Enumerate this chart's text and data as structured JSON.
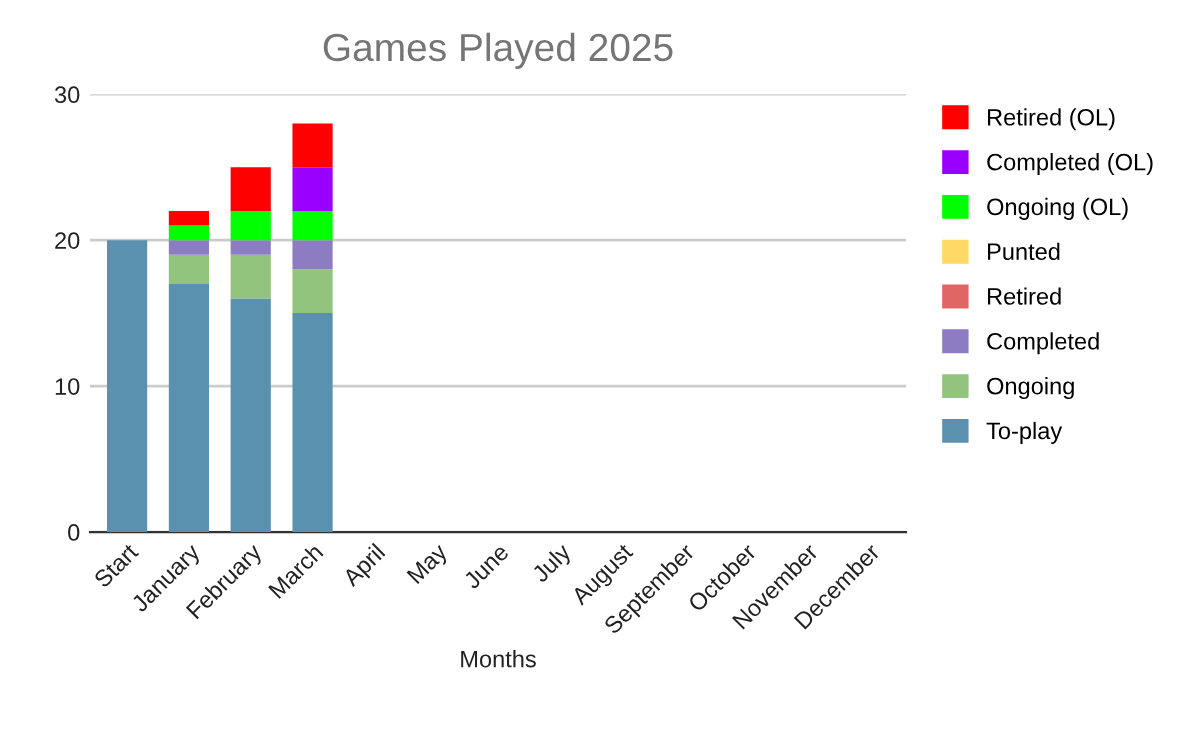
{
  "chart_data": {
    "type": "bar",
    "title": "Games Played 2025",
    "xlabel": "Months",
    "stacked": true,
    "categories": [
      "Start",
      "January",
      "February",
      "March",
      "April",
      "May",
      "June",
      "July",
      "August",
      "September",
      "October",
      "November",
      "December"
    ],
    "series": [
      {
        "name": "To-play",
        "color": "#5a91ae",
        "values": [
          20,
          17,
          16,
          15,
          null,
          null,
          null,
          null,
          null,
          null,
          null,
          null,
          null
        ]
      },
      {
        "name": "Ongoing",
        "color": "#93c47d",
        "values": [
          0,
          2,
          3,
          3,
          null,
          null,
          null,
          null,
          null,
          null,
          null,
          null,
          null
        ]
      },
      {
        "name": "Completed",
        "color": "#8e7cc3",
        "values": [
          0,
          1,
          1,
          2,
          null,
          null,
          null,
          null,
          null,
          null,
          null,
          null,
          null
        ]
      },
      {
        "name": "Retired",
        "color": "#e06666",
        "values": [
          0,
          0,
          0,
          0,
          null,
          null,
          null,
          null,
          null,
          null,
          null,
          null,
          null
        ]
      },
      {
        "name": "Punted",
        "color": "#ffd966",
        "values": [
          0,
          0,
          0,
          0,
          null,
          null,
          null,
          null,
          null,
          null,
          null,
          null,
          null
        ]
      },
      {
        "name": "Ongoing (OL)",
        "color": "#00ff00",
        "values": [
          0,
          1,
          2,
          2,
          null,
          null,
          null,
          null,
          null,
          null,
          null,
          null,
          null
        ]
      },
      {
        "name": "Completed (OL)",
        "color": "#9900ff",
        "values": [
          0,
          0,
          0,
          3,
          null,
          null,
          null,
          null,
          null,
          null,
          null,
          null,
          null
        ]
      },
      {
        "name": "Retired (OL)",
        "color": "#ff0000",
        "values": [
          0,
          1,
          3,
          3,
          null,
          null,
          null,
          null,
          null,
          null,
          null,
          null,
          null
        ]
      }
    ],
    "ylim": [
      0,
      30
    ],
    "yticks": [
      0,
      10,
      20,
      30
    ],
    "grid": "y",
    "legend": "right"
  }
}
